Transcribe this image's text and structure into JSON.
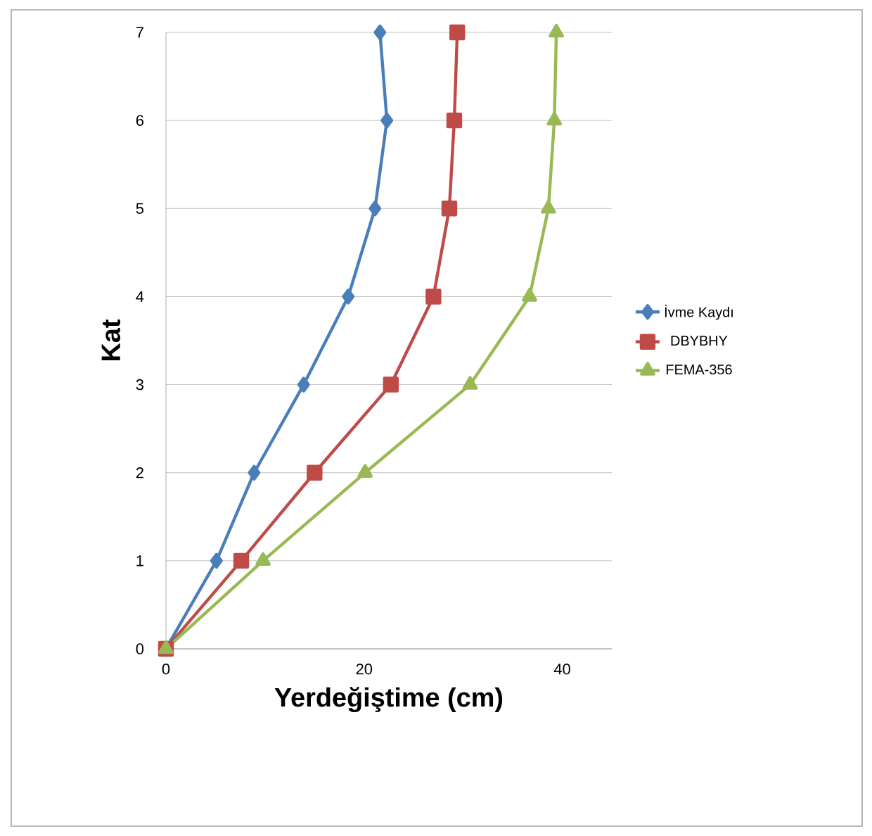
{
  "chart_data": {
    "type": "line",
    "xlabel": "Yerdeğiştime (cm)",
    "ylabel": "Kat",
    "xlim": [
      0,
      45
    ],
    "xticks": [
      0,
      20,
      40
    ],
    "ylim": [
      0,
      7
    ],
    "yticks": [
      0,
      1,
      2,
      3,
      4,
      5,
      6,
      7
    ],
    "grid": "y",
    "legend": "right",
    "line_style": "solid",
    "series": [
      {
        "name": "İvme Kaydı",
        "color": "#4a7ebb",
        "marker": "diamond",
        "x": [
          0,
          5.1,
          8.9,
          13.9,
          18.4,
          21.1,
          22.3,
          21.6
        ],
        "values": [
          0,
          1,
          2,
          3,
          4,
          5,
          6,
          7
        ]
      },
      {
        "name": "DBYBHY",
        "color": "#be4b48",
        "marker": "square",
        "x": [
          0,
          7.6,
          15.0,
          22.7,
          27.0,
          28.6,
          29.1,
          29.4
        ],
        "values": [
          0,
          1,
          2,
          3,
          4,
          5,
          6,
          7
        ]
      },
      {
        "name": "FEMA-356",
        "color": "#98b954",
        "marker": "triangle",
        "x": [
          0,
          9.8,
          20.1,
          30.7,
          36.7,
          38.6,
          39.2,
          39.4
        ],
        "values": [
          0,
          1,
          2,
          3,
          4,
          5,
          6,
          7
        ]
      }
    ]
  }
}
